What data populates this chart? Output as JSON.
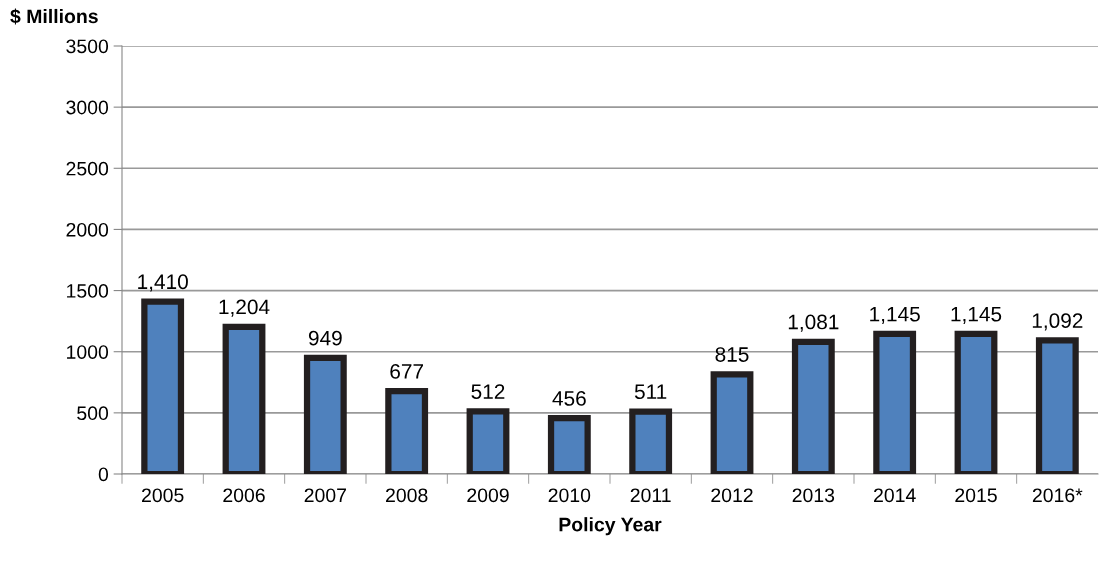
{
  "chart_data": {
    "type": "bar",
    "ylabel": "$ Millions",
    "xlabel": "Policy Year",
    "categories": [
      "2005",
      "2006",
      "2007",
      "2008",
      "2009",
      "2010",
      "2011",
      "2012",
      "2013",
      "2014",
      "2015",
      "2016*"
    ],
    "values": [
      1410,
      1204,
      949,
      677,
      512,
      456,
      511,
      815,
      1081,
      1145,
      1145,
      1092
    ],
    "value_labels": [
      "1,410",
      "1,204",
      "949",
      "677",
      "512",
      "456",
      "511",
      "815",
      "1,081",
      "1,145",
      "1,145",
      "1,092"
    ],
    "color": "#4f81bd",
    "ylim": [
      0,
      3500
    ],
    "yticks": [
      0,
      500,
      1000,
      1500,
      2000,
      2500,
      3000,
      3500
    ],
    "grid": "y",
    "legend": false
  }
}
